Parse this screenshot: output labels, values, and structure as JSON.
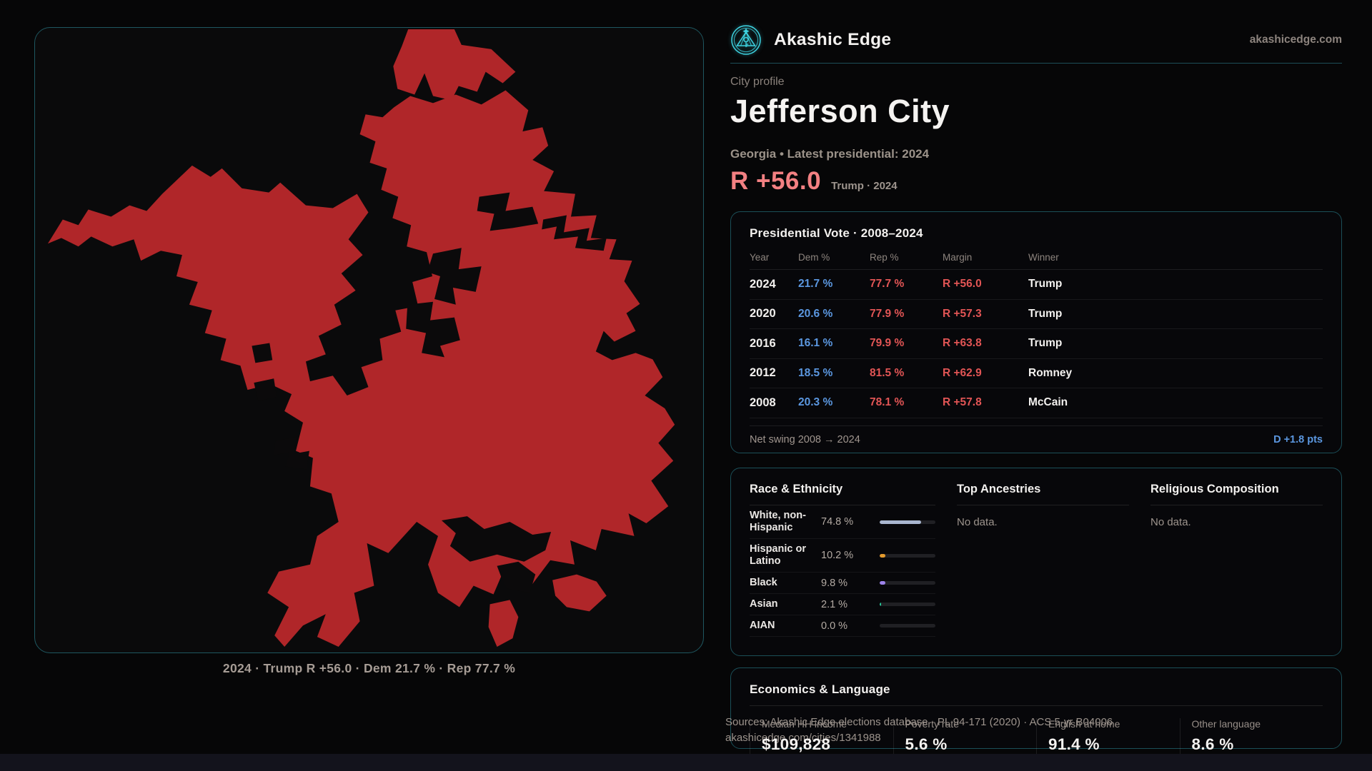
{
  "brand": {
    "name": "Akashic Edge",
    "domain": "akashicedge.com",
    "accent": "#3ed4e2"
  },
  "profile": {
    "eyebrow": "City profile",
    "city": "Jefferson City",
    "subtitle": "Georgia • Latest presidential: 2024",
    "margin_value": "R +56.0",
    "margin_context": "Trump · 2024"
  },
  "map": {
    "caption": "2024 · Trump R +56.0 · Dem 21.7 % · Rep 77.7 %",
    "fill_color": "#b02629"
  },
  "vote_table": {
    "title": "Presidential Vote · 2008–2024",
    "columns": [
      "Year",
      "Dem %",
      "Rep %",
      "Margin",
      "Winner"
    ],
    "rows": [
      {
        "year": "2024",
        "dem": "21.7 %",
        "rep": "77.7 %",
        "margin": "R +56.0",
        "winner": "Trump"
      },
      {
        "year": "2020",
        "dem": "20.6 %",
        "rep": "77.9 %",
        "margin": "R +57.3",
        "winner": "Trump"
      },
      {
        "year": "2016",
        "dem": "16.1 %",
        "rep": "79.9 %",
        "margin": "R +63.8",
        "winner": "Trump"
      },
      {
        "year": "2012",
        "dem": "18.5 %",
        "rep": "81.5 %",
        "margin": "R +62.9",
        "winner": "Romney"
      },
      {
        "year": "2008",
        "dem": "20.3 %",
        "rep": "78.1 %",
        "margin": "R +57.8",
        "winner": "McCain"
      }
    ],
    "net_swing_label": "Net swing 2008 → 2024",
    "net_swing_value": "D +1.8 pts"
  },
  "demographics": {
    "race_title": "Race & Ethnicity",
    "race_rows": [
      {
        "label": "White, non-Hispanic",
        "value": "74.8 %",
        "pct": 74.8,
        "color": "#a9b6cf"
      },
      {
        "label": "Hispanic or Latino",
        "value": "10.2 %",
        "pct": 10.2,
        "color": "#e39a2d"
      },
      {
        "label": "Black",
        "value": "9.8 %",
        "pct": 9.8,
        "color": "#9d83ea"
      },
      {
        "label": "Asian",
        "value": "2.1 %",
        "pct": 2.1,
        "color": "#27c99a"
      },
      {
        "label": "AIAN",
        "value": "0.0 %",
        "pct": 0.0,
        "color": "#8b9bb5"
      }
    ],
    "ancestries_title": "Top Ancestries",
    "ancestries_empty": "No data.",
    "religion_title": "Religious Composition",
    "religion_empty": "No data."
  },
  "economics": {
    "title": "Economics & Language",
    "stats": [
      {
        "label": "Median HH income",
        "value": "$109,828"
      },
      {
        "label": "Poverty rate",
        "value": "5.6 %"
      },
      {
        "label": "English at home",
        "value": "91.4 %"
      },
      {
        "label": "Other language",
        "value": "8.6 %"
      }
    ]
  },
  "footer": {
    "sources": "Sources: Akashic Edge elections database · PL 94-171 (2020) · ACS 5-yr B04006",
    "permalink": "akashicedge.com/cities/1341988"
  }
}
